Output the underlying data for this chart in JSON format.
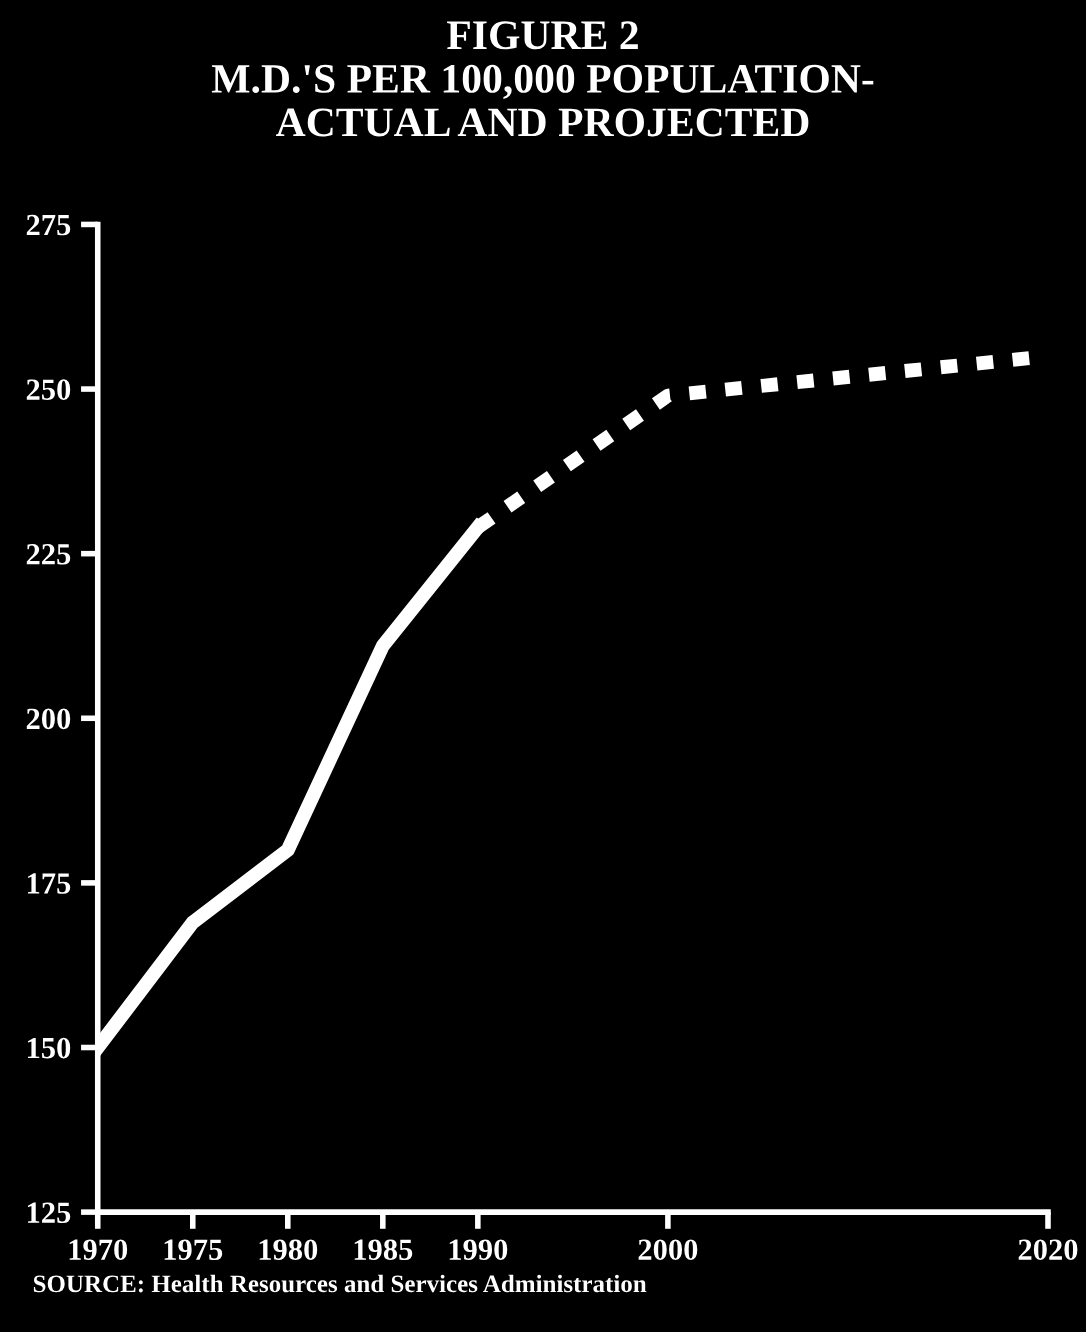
{
  "chart_data": {
    "type": "line",
    "title": "FIGURE 2\nM.D.'S PER 100,000 POPULATION-\nACTUAL AND PROJECTED",
    "series": [
      {
        "color": "#ffffff",
        "line_style": "solid",
        "x": [
          1970,
          1975,
          1980,
          1985,
          1990
        ],
        "values": [
          150,
          169,
          180,
          211,
          229
        ]
      },
      {
        "color": "#ffffff",
        "line_style": "dashed",
        "x": [
          1990,
          2000,
          2020
        ],
        "values": [
          229,
          249,
          255
        ]
      }
    ],
    "xlim": [
      1970,
      2020
    ],
    "xticks": [
      1970,
      1975,
      1980,
      1985,
      1990,
      2000,
      2020
    ],
    "ylim": [
      125,
      275
    ],
    "yticks": [
      125,
      150,
      175,
      200,
      225,
      250,
      275
    ],
    "grid": false,
    "legend": false,
    "marker": "none",
    "annotations": [
      "SOURCE: Health Resources and Services Administration"
    ]
  }
}
